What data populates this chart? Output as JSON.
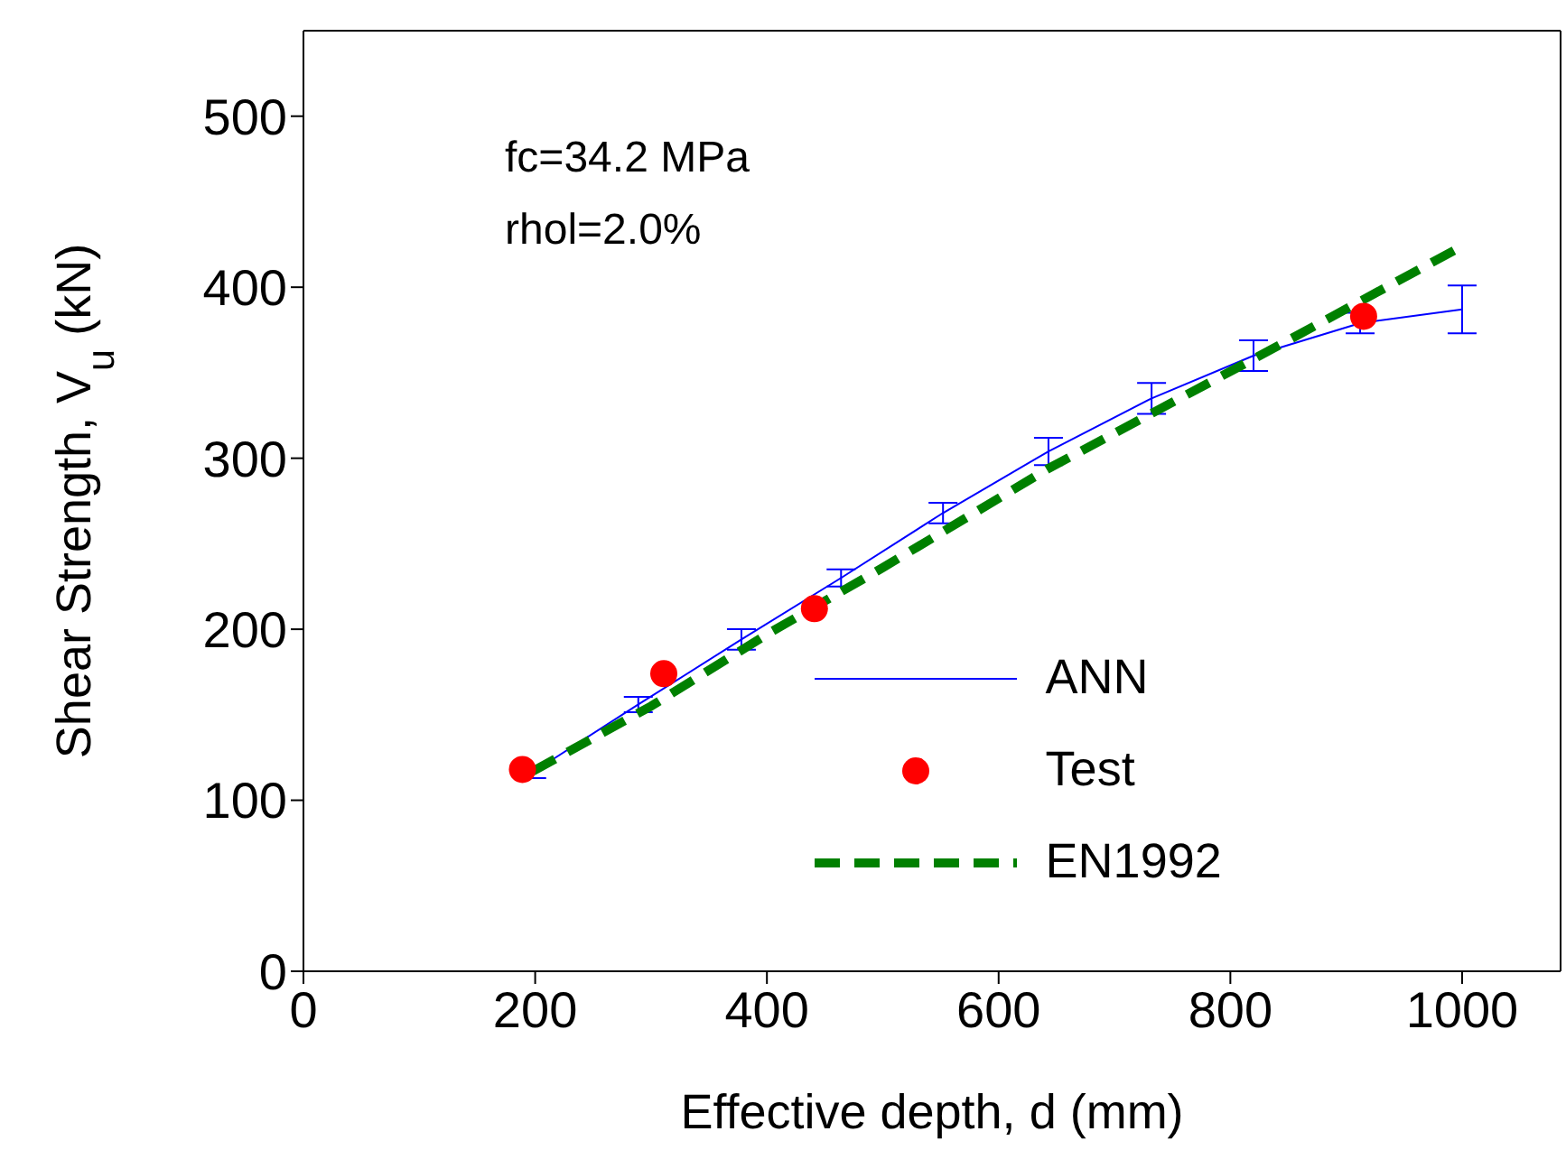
{
  "chart_data": {
    "type": "line",
    "xlabel": "Effective depth, d (mm)",
    "ylabel": "Shear Strength, V$_{u}$ (kN)",
    "annotations": [
      "fc=34.2 MPa",
      "rhol=2.0%"
    ],
    "xlim": [
      0,
      1085
    ],
    "xticks": [
      0,
      200,
      400,
      600,
      800,
      1000
    ],
    "ylim": [
      0,
      550
    ],
    "yticks": [
      0,
      100,
      200,
      300,
      400,
      500
    ],
    "grid": false,
    "legend": "bottom right",
    "series": [
      {
        "name": "ANN",
        "type": "line",
        "color": "#0000ff",
        "line_style": "solid",
        "marker": "none",
        "x": [
          197,
          289,
          378,
          464,
          552,
          643,
          732,
          820,
          912,
          1000
        ],
        "values": [
          116,
          156,
          194,
          230,
          268,
          304,
          335,
          360,
          379,
          387
        ],
        "errors": [
          3,
          4.5,
          6,
          5,
          6,
          8,
          9,
          9,
          6,
          14
        ]
      },
      {
        "name": "Test",
        "type": "scatter",
        "color": "#ff0000",
        "marker": "circle",
        "x": [
          189,
          311,
          441,
          915
        ],
        "values": [
          118,
          174,
          212,
          383
        ]
      },
      {
        "name": "EN1992",
        "type": "line",
        "color": "#008000",
        "line_style": "dashed",
        "marker": "none",
        "x": [
          198,
          300,
          400,
          500,
          643,
          820,
          1000
        ],
        "values": [
          117,
          155,
          197,
          236,
          294,
          358,
          424
        ]
      }
    ]
  }
}
